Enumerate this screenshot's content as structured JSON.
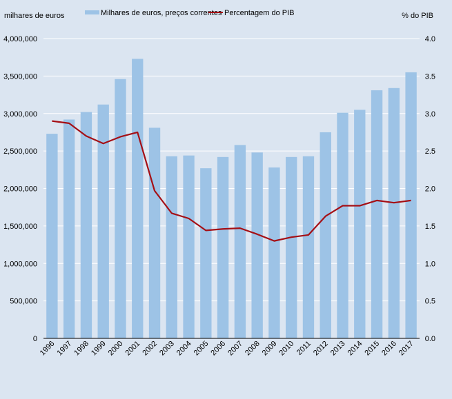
{
  "chart_data": {
    "type": "bar",
    "title": "",
    "ylabel": "milhares de euros",
    "y2label": "% do PIB",
    "xlabel": "",
    "ylim": [
      0,
      4000000
    ],
    "y2lim": [
      0,
      4.0
    ],
    "grid": true,
    "legend_position": "top",
    "categories": [
      "1996",
      "1997",
      "1998",
      "1999",
      "2000",
      "2001",
      "2002",
      "2003",
      "2004",
      "2005",
      "2006",
      "2007",
      "2008",
      "2009",
      "2010",
      "2011",
      "2012",
      "2013",
      "2014",
      "2015",
      "2016",
      "2017"
    ],
    "yticks": [
      "0",
      "500,000",
      "1,000,000",
      "1,500,000",
      "2,000,000",
      "2,500,000",
      "3,000,000",
      "3,500,000",
      "4,000,000"
    ],
    "y2ticks": [
      "0.0",
      "0.5",
      "1.0",
      "1.5",
      "2.0",
      "2.5",
      "3.0",
      "3.5",
      "4.0"
    ],
    "series": [
      {
        "name": "Milhares de euros, preços correntes",
        "type": "bar",
        "axis": "left",
        "color": "#9dc3e6",
        "values": [
          2730000,
          2920000,
          3020000,
          3120000,
          3460000,
          3730000,
          2810000,
          2430000,
          2440000,
          2270000,
          2420000,
          2580000,
          2480000,
          2280000,
          2420000,
          2430000,
          2750000,
          3010000,
          3050000,
          3310000,
          3340000,
          3550000
        ]
      },
      {
        "name": "Percentagem do PIB",
        "type": "line",
        "axis": "right",
        "color": "#a50f15",
        "values": [
          2.9,
          2.87,
          2.7,
          2.6,
          2.69,
          2.75,
          1.97,
          1.67,
          1.6,
          1.44,
          1.46,
          1.47,
          1.39,
          1.3,
          1.35,
          1.38,
          1.63,
          1.77,
          1.77,
          1.84,
          1.81,
          1.84
        ]
      }
    ]
  }
}
